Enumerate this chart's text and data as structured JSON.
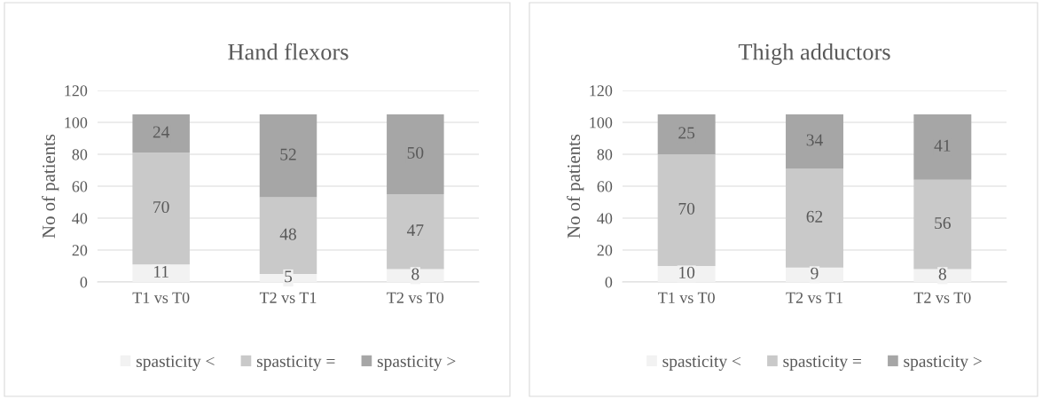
{
  "chart_data": [
    {
      "type": "bar",
      "title": "Hand flexors",
      "ylabel": "No of patients",
      "categories": [
        "T1 vs T0",
        "T2 vs T1",
        "T2 vs T0"
      ],
      "stacked": true,
      "data_labels": true,
      "ylim": [
        0,
        120
      ],
      "yticks": [
        0,
        20,
        40,
        60,
        80,
        100,
        120
      ],
      "grid": "y",
      "legend": "bottom",
      "series": [
        {
          "name": "spasticity <",
          "color": "#f2f2f2",
          "values": [
            11,
            5,
            8
          ]
        },
        {
          "name": "spasticity =",
          "color": "#c9c9c9",
          "values": [
            70,
            48,
            47
          ]
        },
        {
          "name": "spasticity >",
          "color": "#a6a6a6",
          "values": [
            24,
            52,
            50
          ]
        }
      ]
    },
    {
      "type": "bar",
      "title": "Thigh adductors",
      "ylabel": "No of patients",
      "categories": [
        "T1 vs T0",
        "T2 vs T1",
        "T2 vs T0"
      ],
      "stacked": true,
      "data_labels": true,
      "ylim": [
        0,
        120
      ],
      "yticks": [
        0,
        20,
        40,
        60,
        80,
        100,
        120
      ],
      "grid": "y",
      "legend": "bottom",
      "series": [
        {
          "name": "spasticity <",
          "color": "#f2f2f2",
          "values": [
            10,
            9,
            8
          ]
        },
        {
          "name": "spasticity =",
          "color": "#c9c9c9",
          "values": [
            70,
            62,
            56
          ]
        },
        {
          "name": "spasticity >",
          "color": "#a6a6a6",
          "values": [
            25,
            34,
            41
          ]
        }
      ]
    }
  ]
}
